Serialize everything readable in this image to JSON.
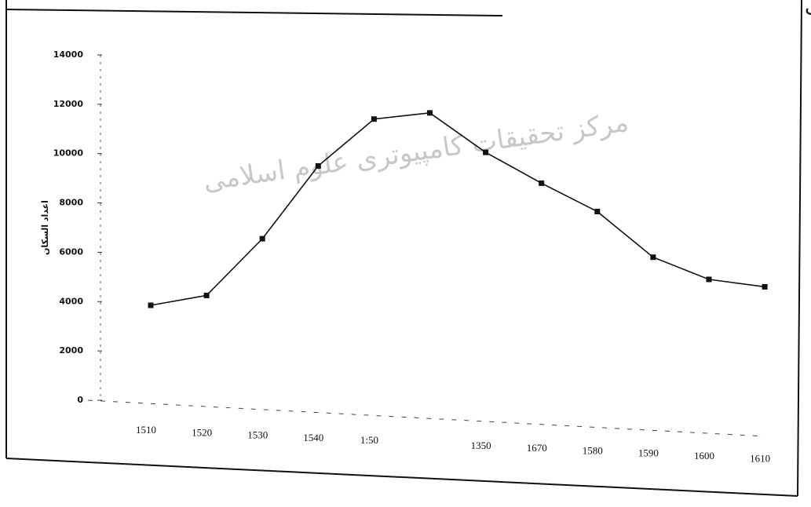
{
  "chart_data": {
    "type": "line",
    "heading": "قل من نصف قرن إلى",
    "watermark": "مرکز تحقیقات کامپیوتری علوم اسلامی",
    "y_label": "اعداد السكان",
    "categories": [
      "1510",
      "1520",
      "1530",
      "1540",
      "1:50",
      null,
      "1350",
      "1670",
      "1580",
      "1590",
      "1600",
      "1610"
    ],
    "series": [
      {
        "name": "اعداد السكان",
        "color": "#111111",
        "values": [
          3850,
          4250,
          6550,
          9500,
          11400,
          11650,
          10050,
          8800,
          7650,
          5800,
          4900,
          4600
        ]
      }
    ],
    "ylim": [
      0,
      14000
    ],
    "yticks": [
      0,
      2000,
      4000,
      6000,
      8000,
      10000,
      12000,
      14000
    ],
    "grid": false
  }
}
